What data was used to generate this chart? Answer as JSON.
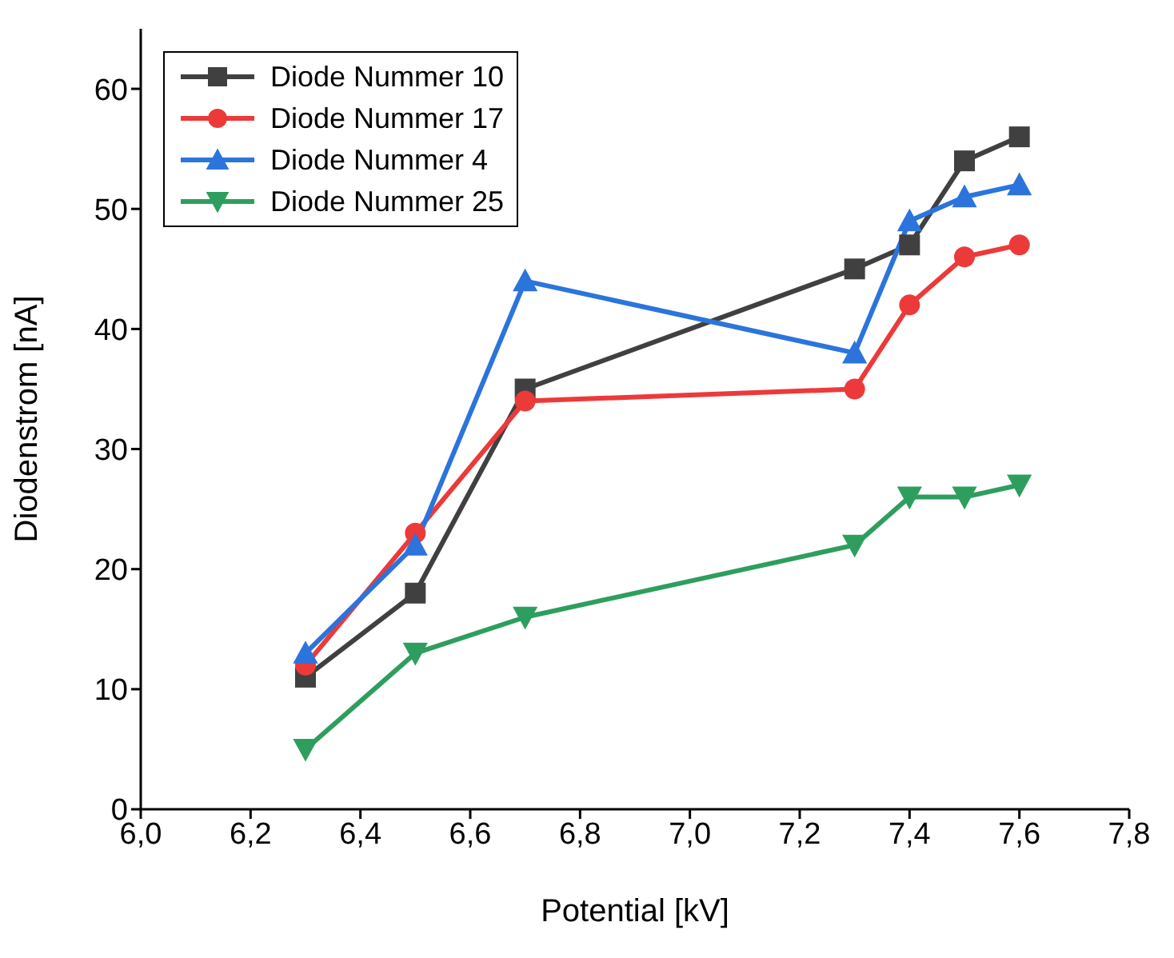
{
  "chart_data": {
    "type": "line",
    "xlabel": "Potential [kV]",
    "ylabel": "Diodenstrom [nA]",
    "x": [
      6.3,
      6.5,
      6.7,
      7.3,
      7.4,
      7.5,
      7.6
    ],
    "series": [
      {
        "name": "Diode Nummer 10",
        "color": "#404040",
        "marker": "square",
        "values": [
          11,
          18,
          35,
          45,
          47,
          54,
          56
        ]
      },
      {
        "name": "Diode Nummer 17",
        "color": "#ec3a3a",
        "marker": "circle",
        "values": [
          12,
          23,
          34,
          35,
          42,
          46,
          47
        ]
      },
      {
        "name": "Diode Nummer 4",
        "color": "#2b74dc",
        "marker": "triangle",
        "values": [
          13,
          22,
          44,
          38,
          49,
          51,
          52
        ]
      },
      {
        "name": "Diode Nummer 25",
        "color": "#2e9e5e",
        "marker": "triangle_down",
        "values": [
          5,
          13,
          16,
          22,
          26,
          26,
          27
        ]
      }
    ],
    "xlim": [
      6.0,
      7.8
    ],
    "xticks": [
      {
        "value": 6.0,
        "label": "6,0"
      },
      {
        "value": 6.2,
        "label": "6,2"
      },
      {
        "value": 6.4,
        "label": "6,4"
      },
      {
        "value": 6.6,
        "label": "6,6"
      },
      {
        "value": 6.8,
        "label": "6,8"
      },
      {
        "value": 7.0,
        "label": "7,0"
      },
      {
        "value": 7.2,
        "label": "7,2"
      },
      {
        "value": 7.4,
        "label": "7,4"
      },
      {
        "value": 7.6,
        "label": "7,6"
      },
      {
        "value": 7.8,
        "label": "7,8"
      }
    ],
    "ylim": [
      0,
      65
    ],
    "yticks": [
      0,
      10,
      20,
      30,
      40,
      50,
      60
    ],
    "legend": "top left",
    "grid": false
  }
}
